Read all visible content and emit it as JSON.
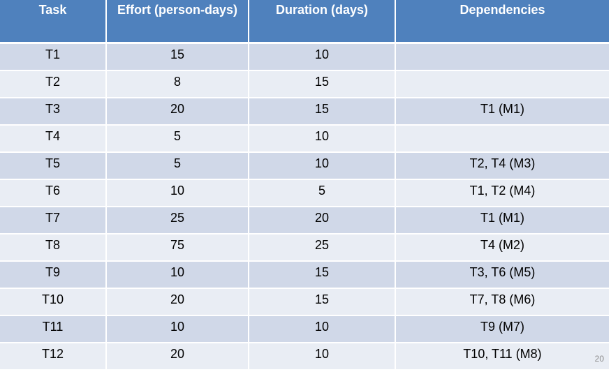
{
  "table": {
    "headers": [
      "Task",
      "Effort (person-days)",
      "Duration (days)",
      "Dependencies"
    ],
    "rows": [
      [
        "T1",
        "15",
        "10",
        ""
      ],
      [
        "T2",
        "8",
        "15",
        ""
      ],
      [
        "T3",
        "20",
        "15",
        "T1 (M1)"
      ],
      [
        "T4",
        "5",
        "10",
        ""
      ],
      [
        "T5",
        "5",
        "10",
        "T2, T4 (M3)"
      ],
      [
        "T6",
        "10",
        "5",
        "T1, T2 (M4)"
      ],
      [
        "T7",
        "25",
        "20",
        "T1 (M1)"
      ],
      [
        "T8",
        "75",
        "25",
        "T4 (M2)"
      ],
      [
        "T9",
        "10",
        "15",
        "T3, T6 (M5)"
      ],
      [
        "T10",
        "20",
        "15",
        "T7, T8 (M6)"
      ],
      [
        "T11",
        "10",
        "10",
        "T9 (M7)"
      ],
      [
        "T12",
        "20",
        "10",
        "T10, T11 (M8)"
      ]
    ]
  },
  "page_number": "20",
  "colors": {
    "header_bg": "#4f81bd",
    "row_odd": "#d0d8e8",
    "row_even": "#e9edf4"
  }
}
